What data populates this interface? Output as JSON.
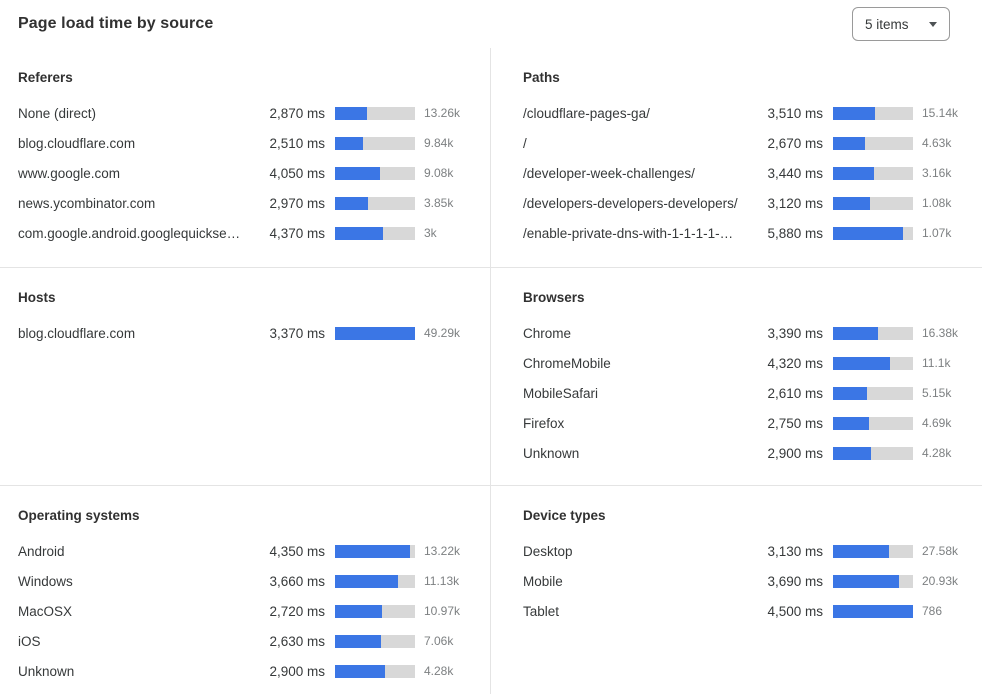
{
  "page": {
    "title": "Page load time by source",
    "items_dropdown": {
      "value": "5 items"
    }
  },
  "colors": {
    "bar_fill": "#3b76e5",
    "bar_track": "#d8d8d8",
    "divider": "#e4e4e4",
    "title_text": "#313131",
    "row_text": "#36393a",
    "count_text": "#7d8082",
    "dropdown_border": "#9a9a9a"
  },
  "chart_data": [
    {
      "section": "Referers",
      "type": "bar",
      "unit": "ms",
      "rows": [
        {
          "label": "None (direct)",
          "load_time_ms": 2870,
          "load_time_display": "2,870 ms",
          "count_display": "13.26k",
          "bar_pct": 40
        },
        {
          "label": "blog.cloudflare.com",
          "load_time_ms": 2510,
          "load_time_display": "2,510 ms",
          "count_display": "9.84k",
          "bar_pct": 35
        },
        {
          "label": "www.google.com",
          "load_time_ms": 4050,
          "load_time_display": "4,050 ms",
          "count_display": "9.08k",
          "bar_pct": 56
        },
        {
          "label": "news.ycombinator.com",
          "load_time_ms": 2970,
          "load_time_display": "2,970 ms",
          "count_display": "3.85k",
          "bar_pct": 41
        },
        {
          "label": "com.google.android.googlequicksearc...",
          "load_time_ms": 4370,
          "load_time_display": "4,370 ms",
          "count_display": "3k",
          "bar_pct": 60
        }
      ]
    },
    {
      "section": "Paths",
      "type": "bar",
      "unit": "ms",
      "rows": [
        {
          "label": "/cloudflare-pages-ga/",
          "load_time_ms": 3510,
          "load_time_display": "3,510 ms",
          "count_display": "15.14k",
          "bar_pct": 52
        },
        {
          "label": "/",
          "load_time_ms": 2670,
          "load_time_display": "2,670 ms",
          "count_display": "4.63k",
          "bar_pct": 40
        },
        {
          "label": "/developer-week-challenges/",
          "load_time_ms": 3440,
          "load_time_display": "3,440 ms",
          "count_display": "3.16k",
          "bar_pct": 51
        },
        {
          "label": "/developers-developers-developers/",
          "load_time_ms": 3120,
          "load_time_display": "3,120 ms",
          "count_display": "1.08k",
          "bar_pct": 46
        },
        {
          "label": "/enable-private-dns-with-1-1-1-1-on-...",
          "load_time_ms": 5880,
          "load_time_display": "5,880 ms",
          "count_display": "1.07k",
          "bar_pct": 87
        }
      ]
    },
    {
      "section": "Hosts",
      "type": "bar",
      "unit": "ms",
      "rows": [
        {
          "label": "blog.cloudflare.com",
          "load_time_ms": 3370,
          "load_time_display": "3,370 ms",
          "count_display": "49.29k",
          "bar_pct": 100
        }
      ]
    },
    {
      "section": "Browsers",
      "type": "bar",
      "unit": "ms",
      "rows": [
        {
          "label": "Chrome",
          "load_time_ms": 3390,
          "load_time_display": "3,390 ms",
          "count_display": "16.38k",
          "bar_pct": 56
        },
        {
          "label": "ChromeMobile",
          "load_time_ms": 4320,
          "load_time_display": "4,320 ms",
          "count_display": "11.1k",
          "bar_pct": 71
        },
        {
          "label": "MobileSafari",
          "load_time_ms": 2610,
          "load_time_display": "2,610 ms",
          "count_display": "5.15k",
          "bar_pct": 43
        },
        {
          "label": "Firefox",
          "load_time_ms": 2750,
          "load_time_display": "2,750 ms",
          "count_display": "4.69k",
          "bar_pct": 45
        },
        {
          "label": "Unknown",
          "load_time_ms": 2900,
          "load_time_display": "2,900 ms",
          "count_display": "4.28k",
          "bar_pct": 48
        }
      ]
    },
    {
      "section": "Operating systems",
      "type": "bar",
      "unit": "ms",
      "rows": [
        {
          "label": "Android",
          "load_time_ms": 4350,
          "load_time_display": "4,350 ms",
          "count_display": "13.22k",
          "bar_pct": 94
        },
        {
          "label": "Windows",
          "load_time_ms": 3660,
          "load_time_display": "3,660 ms",
          "count_display": "11.13k",
          "bar_pct": 79
        },
        {
          "label": "MacOSX",
          "load_time_ms": 2720,
          "load_time_display": "2,720 ms",
          "count_display": "10.97k",
          "bar_pct": 59
        },
        {
          "label": "iOS",
          "load_time_ms": 2630,
          "load_time_display": "2,630 ms",
          "count_display": "7.06k",
          "bar_pct": 57
        },
        {
          "label": "Unknown",
          "load_time_ms": 2900,
          "load_time_display": "2,900 ms",
          "count_display": "4.28k",
          "bar_pct": 63
        }
      ]
    },
    {
      "section": "Device types",
      "type": "bar",
      "unit": "ms",
      "rows": [
        {
          "label": "Desktop",
          "load_time_ms": 3130,
          "load_time_display": "3,130 ms",
          "count_display": "27.58k",
          "bar_pct": 70
        },
        {
          "label": "Mobile",
          "load_time_ms": 3690,
          "load_time_display": "3,690 ms",
          "count_display": "20.93k",
          "bar_pct": 82
        },
        {
          "label": "Tablet",
          "load_time_ms": 4500,
          "load_time_display": "4,500 ms",
          "count_display": "786",
          "bar_pct": 100
        }
      ]
    }
  ]
}
